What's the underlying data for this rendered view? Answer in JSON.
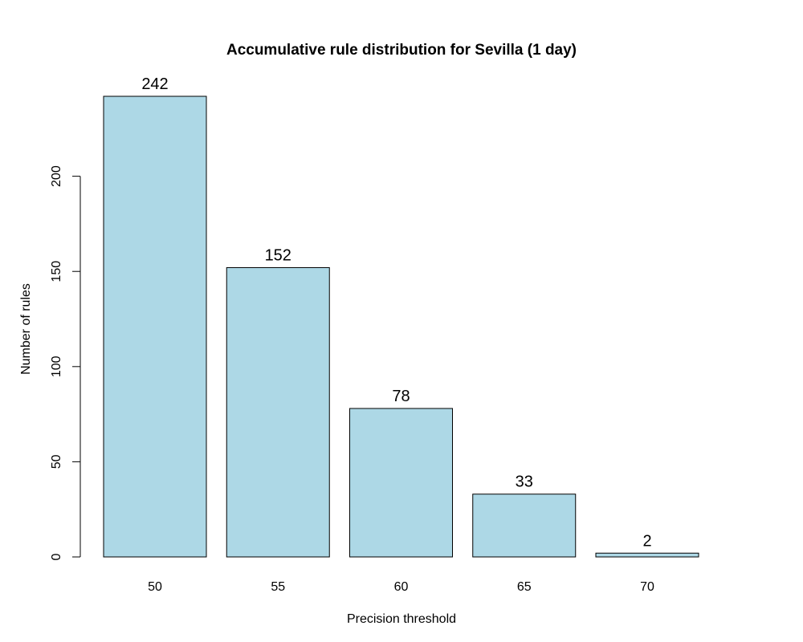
{
  "chart_data": {
    "type": "bar",
    "title": "Accumulative rule distribution for Sevilla (1 day)",
    "xlabel": "Precision threshold",
    "ylabel": "Number of rules",
    "categories": [
      "50",
      "55",
      "60",
      "65",
      "70"
    ],
    "values": [
      242,
      152,
      78,
      33,
      2
    ],
    "data_labels": [
      "242",
      "152",
      "78",
      "33",
      "2"
    ],
    "yticks": [
      0,
      50,
      100,
      150,
      200
    ],
    "ytick_labels": [
      "0",
      "50",
      "100",
      "150",
      "200"
    ],
    "ylim": [
      0,
      242
    ],
    "grid": false,
    "legend": "none",
    "bar_color": "#add8e6",
    "edge_color": "#000000"
  }
}
